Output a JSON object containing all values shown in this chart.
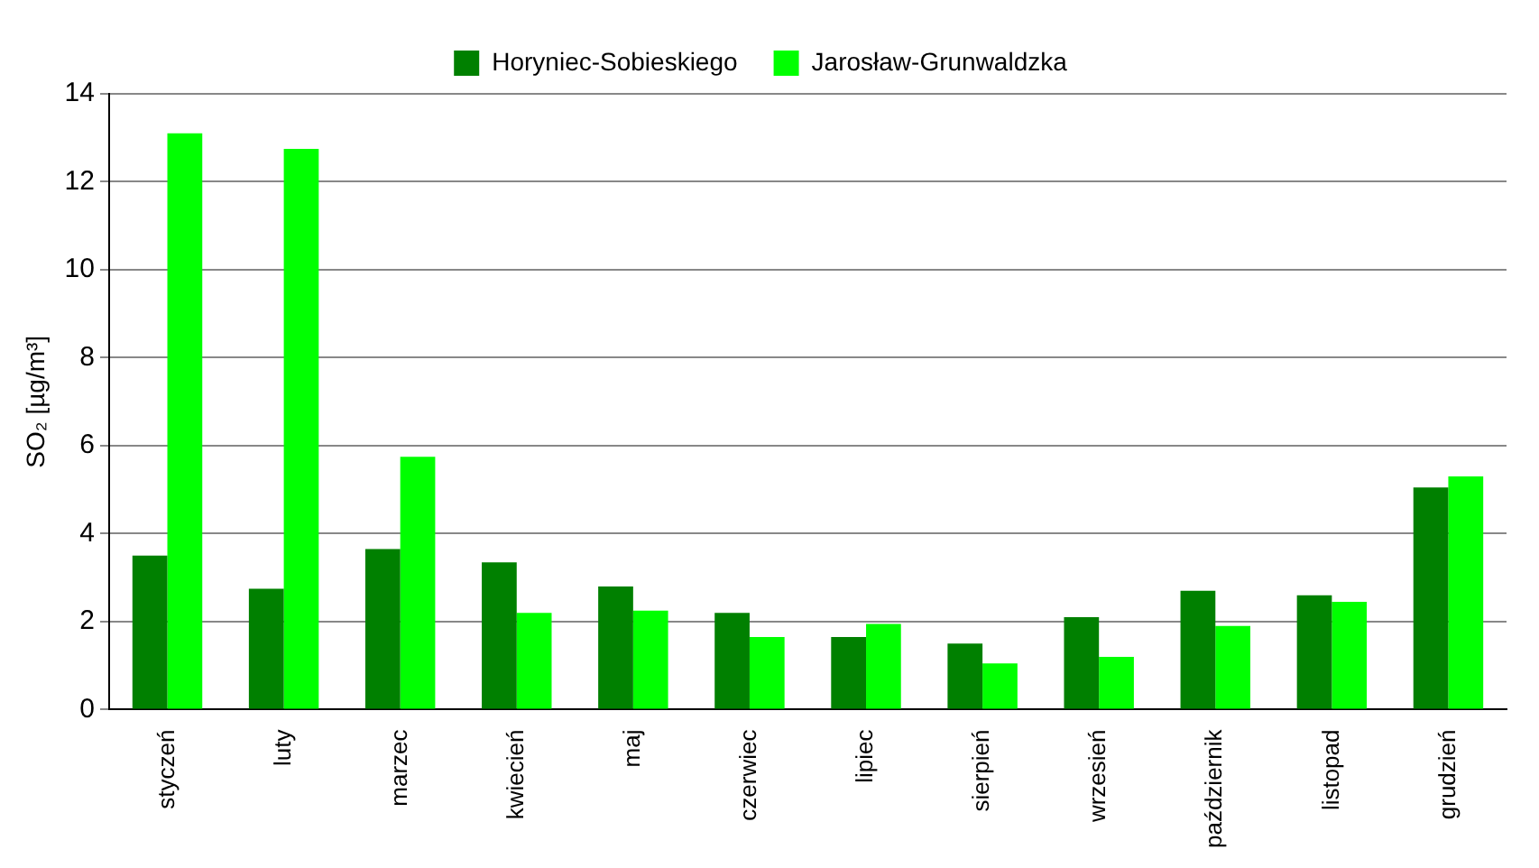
{
  "chart_data": {
    "type": "bar",
    "ylabel": "SO₂ [µg/m³]",
    "categories": [
      "styczeń",
      "luty",
      "marzec",
      "kwiecień",
      "maj",
      "czerwiec",
      "lipiec",
      "sierpień",
      "wrzesień",
      "październik",
      "listopad",
      "grudzień"
    ],
    "series": [
      {
        "name": "Horyniec-Sobieskiego",
        "color": "#008000",
        "values": [
          3.5,
          2.75,
          3.65,
          3.35,
          2.8,
          2.2,
          1.65,
          1.5,
          2.1,
          2.7,
          2.6,
          5.05
        ]
      },
      {
        "name": "Jarosław-Grunwaldzka",
        "color": "#00ff00",
        "values": [
          13.1,
          12.75,
          5.75,
          2.2,
          2.25,
          1.65,
          1.95,
          1.05,
          1.2,
          1.9,
          2.45,
          5.3
        ]
      }
    ],
    "ylim": [
      0,
      14
    ],
    "yticks": [
      0,
      2,
      4,
      6,
      8,
      10,
      12,
      14
    ],
    "grid": "y",
    "legend": "top"
  }
}
